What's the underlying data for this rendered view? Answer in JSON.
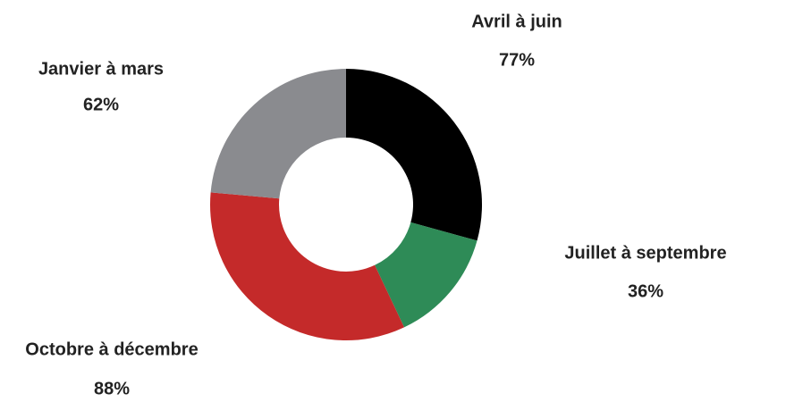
{
  "chart_data": {
    "type": "donut",
    "categories": [
      "Avril à juin",
      "Juillet à septembre",
      "Octobre à décembre",
      "Janvier à mars"
    ],
    "values": [
      77,
      36,
      88,
      62
    ],
    "value_labels": [
      "77%",
      "36%",
      "88%",
      "62%"
    ],
    "colors": [
      "#000000",
      "#2e8b57",
      "#c42a2a",
      "#8a8b8f"
    ]
  }
}
